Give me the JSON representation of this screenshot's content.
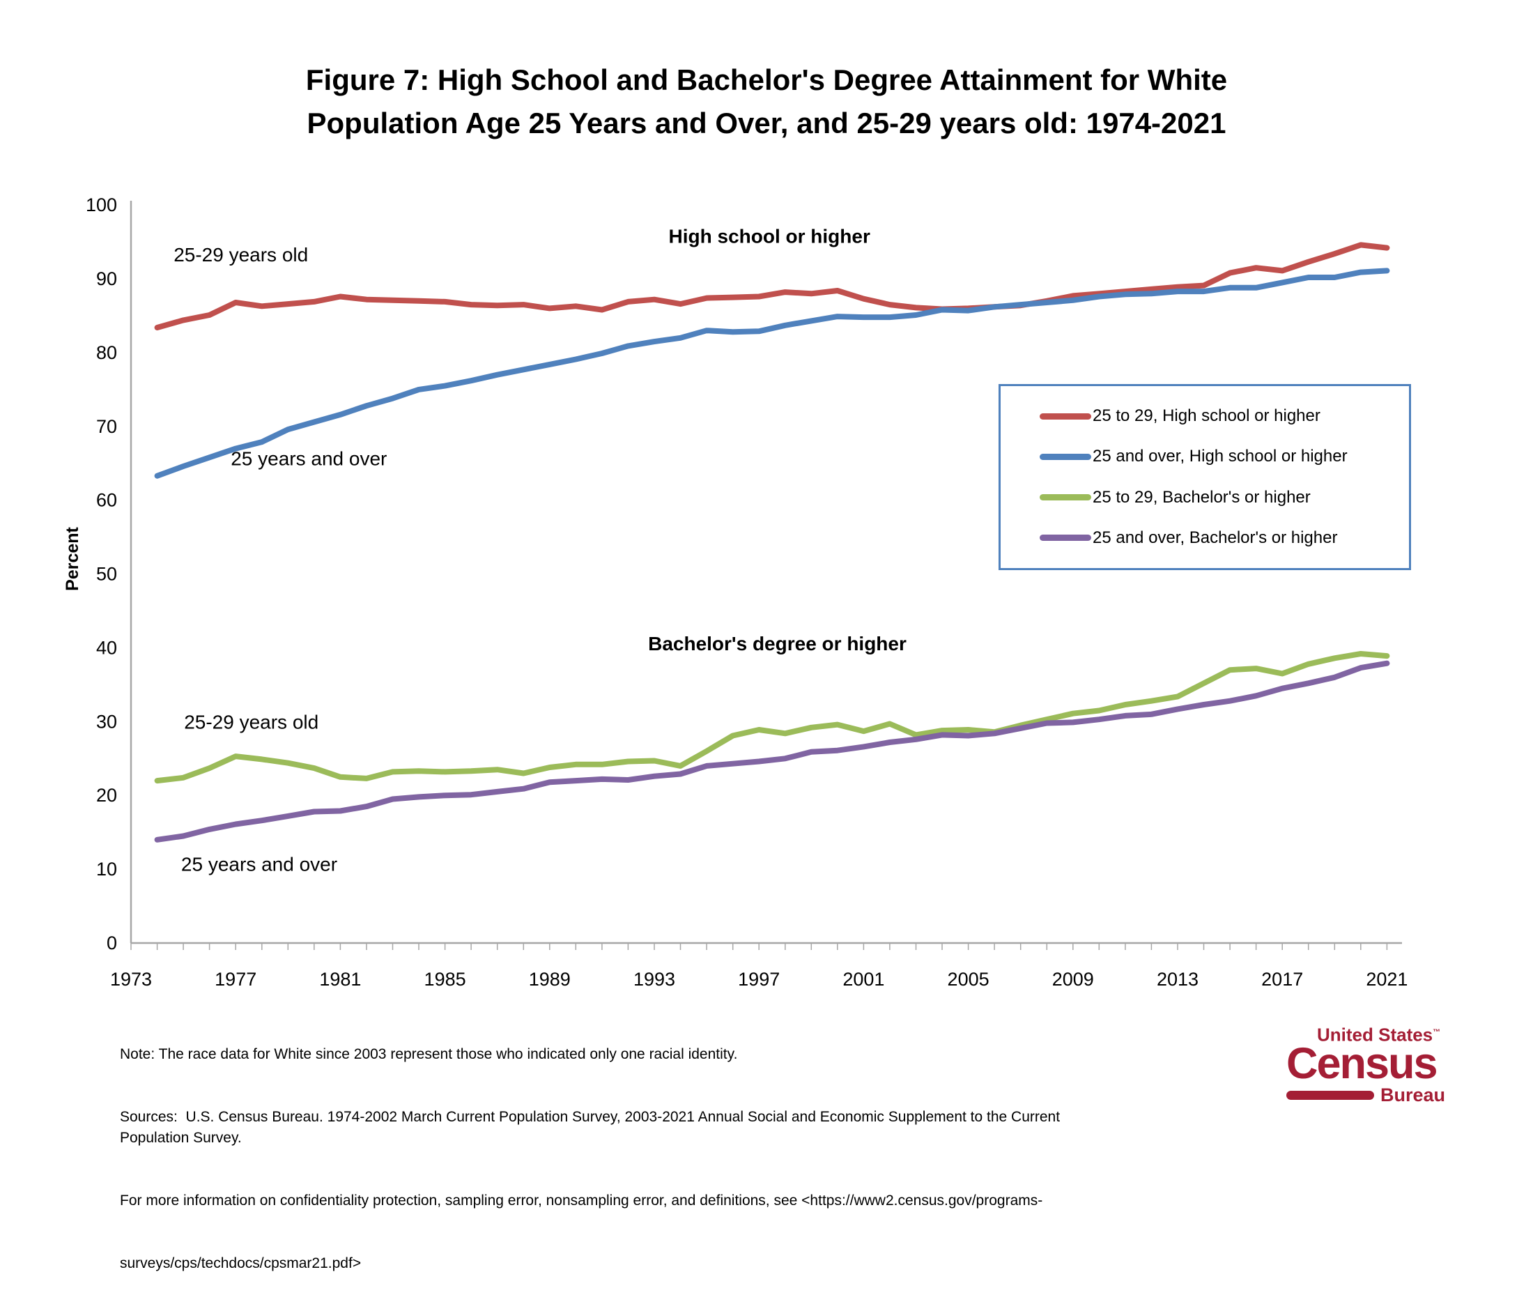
{
  "title": {
    "line1": "Figure 7: High School and Bachelor's Degree Attainment for White",
    "line2": "Population Age 25 Years and Over, and 25-29 years old: 1974-2021"
  },
  "chart_data": {
    "type": "line",
    "title": "Figure 7: High School and Bachelor's Degree Attainment for White Population Age 25 Years and Over, and 25-29 years old: 1974-2021",
    "xlabel": "",
    "ylabel": "Percent",
    "ylim": [
      0,
      100
    ],
    "xlim": [
      1973,
      2022
    ],
    "grid": false,
    "legend_position": "right-inside",
    "axis_color": "#A6A6A6",
    "y_ticks": [
      0,
      10,
      20,
      30,
      40,
      50,
      60,
      70,
      80,
      90,
      100
    ],
    "x_ticks": [
      1973,
      1977,
      1981,
      1985,
      1989,
      1993,
      1997,
      2001,
      2005,
      2009,
      2013,
      2017,
      2021
    ],
    "x": [
      1974,
      1975,
      1976,
      1977,
      1978,
      1979,
      1980,
      1981,
      1982,
      1983,
      1984,
      1985,
      1986,
      1987,
      1988,
      1989,
      1990,
      1991,
      1992,
      1993,
      1994,
      1995,
      1996,
      1997,
      1998,
      1999,
      2000,
      2001,
      2002,
      2003,
      2004,
      2005,
      2006,
      2007,
      2008,
      2009,
      2010,
      2011,
      2012,
      2013,
      2014,
      2015,
      2016,
      2017,
      2018,
      2019,
      2020,
      2021
    ],
    "series": [
      {
        "name": "25 to 29, High school or higher",
        "color": "#C0504D",
        "values": [
          83.4,
          84.4,
          85.1,
          86.8,
          86.3,
          86.6,
          86.9,
          87.6,
          87.2,
          87.1,
          87.0,
          86.9,
          86.5,
          86.4,
          86.5,
          86.0,
          86.3,
          85.8,
          86.9,
          87.2,
          86.6,
          87.4,
          87.5,
          87.6,
          88.2,
          88.0,
          88.4,
          87.3,
          86.5,
          86.1,
          85.9,
          86.0,
          86.2,
          86.4,
          87.0,
          87.7,
          88.0,
          88.3,
          88.6,
          88.9,
          89.1,
          90.8,
          91.5,
          91.1,
          92.3,
          93.4,
          94.6,
          94.2
        ]
      },
      {
        "name": "25 and over, High school or higher",
        "color": "#4F81BD",
        "values": [
          63.3,
          64.6,
          65.8,
          67.0,
          67.9,
          69.6,
          70.6,
          71.6,
          72.8,
          73.8,
          75.0,
          75.5,
          76.2,
          77.0,
          77.7,
          78.4,
          79.1,
          79.9,
          80.9,
          81.5,
          82.0,
          83.0,
          82.8,
          82.9,
          83.7,
          84.3,
          84.9,
          84.8,
          84.8,
          85.1,
          85.8,
          85.7,
          86.2,
          86.5,
          86.8,
          87.1,
          87.6,
          87.9,
          88.0,
          88.3,
          88.3,
          88.8,
          88.8,
          89.5,
          90.2,
          90.2,
          90.9,
          91.1
        ]
      },
      {
        "name": "25 to 29, Bachelor's or higher",
        "color": "#9BBB59",
        "values": [
          22.0,
          22.4,
          23.7,
          25.3,
          24.9,
          24.4,
          23.7,
          22.5,
          22.3,
          23.2,
          23.3,
          23.2,
          23.3,
          23.5,
          23.0,
          23.8,
          24.2,
          24.2,
          24.6,
          24.7,
          24.0,
          26.0,
          28.1,
          28.9,
          28.4,
          29.2,
          29.6,
          28.7,
          29.7,
          28.2,
          28.8,
          28.9,
          28.6,
          29.5,
          30.3,
          31.1,
          31.5,
          32.3,
          32.8,
          33.4,
          35.2,
          37.0,
          37.2,
          36.5,
          37.8,
          38.6,
          39.2,
          38.9
        ]
      },
      {
        "name": "25 and over, Bachelor's or higher",
        "color": "#8064A2",
        "values": [
          14.0,
          14.5,
          15.4,
          16.1,
          16.6,
          17.2,
          17.8,
          17.9,
          18.5,
          19.5,
          19.8,
          20.0,
          20.1,
          20.5,
          20.9,
          21.8,
          22.0,
          22.2,
          22.1,
          22.6,
          22.9,
          24.0,
          24.3,
          24.6,
          25.0,
          25.9,
          26.1,
          26.6,
          27.2,
          27.6,
          28.2,
          28.1,
          28.4,
          29.1,
          29.8,
          29.9,
          30.3,
          30.8,
          31.0,
          31.7,
          32.3,
          32.8,
          33.5,
          34.5,
          35.2,
          36.0,
          37.3,
          37.9
        ]
      }
    ],
    "annotations": [
      {
        "text": "25-29 years old",
        "x": 1977.2,
        "y": 93.3,
        "bold": false
      },
      {
        "text": "High school or higher",
        "x": 1997.4,
        "y": 95.8,
        "bold": true
      },
      {
        "text": "25 years and over",
        "x": 1979.8,
        "y": 65.7,
        "bold": false
      },
      {
        "text": "Bachelor's degree or higher",
        "x": 1997.7,
        "y": 40.6,
        "bold": true
      },
      {
        "text": "25-29 years old",
        "x": 1977.6,
        "y": 30.0,
        "bold": false
      },
      {
        "text": "25 years and over",
        "x": 1977.9,
        "y": 10.7,
        "bold": false
      }
    ]
  },
  "legend": {
    "border_color": "#4F81BD",
    "items": [
      {
        "label": "25 to 29, High school or higher",
        "color": "#C0504D"
      },
      {
        "label": "25 and over, High school or higher",
        "color": "#4F81BD"
      },
      {
        "label": "25 to 29, Bachelor's or higher",
        "color": "#9BBB59"
      },
      {
        "label": "25 and over, Bachelor's or higher",
        "color": "#8064A2"
      }
    ]
  },
  "notes": {
    "line1": "Note: The race data for White since 2003 represent those who indicated only one racial identity.",
    "line2": "Sources:  U.S. Census Bureau. 1974-2002 March Current Population Survey, 2003-2021 Annual Social and Economic Supplement to the Current Population Survey.",
    "line3": "For more information on confidentiality protection, sampling error, nonsampling error, and definitions, see <https://www2.census.gov/programs-",
    "line4": "surveys/cps/techdocs/cpsmar21.pdf>"
  },
  "logo": {
    "line1": "United States",
    "tm": "™",
    "name": "Census",
    "sub": "Bureau",
    "color": "#A41E35"
  }
}
